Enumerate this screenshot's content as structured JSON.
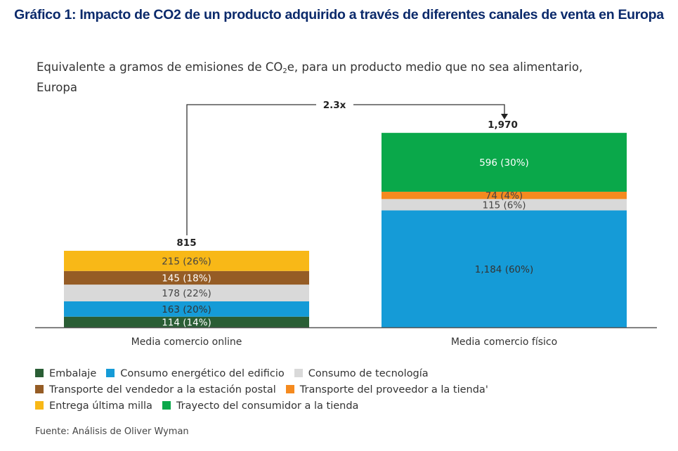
{
  "header": {
    "title": "Gráfico 1: Impacto de CO2 de un producto adquirido a través de diferentes canales de venta en Europa",
    "subtitle_part1": "Equivalente a gramos de emisiones de CO",
    "subtitle_sub": "2",
    "subtitle_part2": "e, para un producto medio que no sea alimentario, Europa"
  },
  "source": "Fuente: Análisis de Oliver Wyman",
  "chart_data": {
    "type": "bar",
    "stacked": true,
    "title": "Gráfico 1: Impacto de CO2 de un producto adquirido a través de diferentes canales de venta en Europa",
    "subtitle": "Equivalente a gramos de emisiones de CO2e, para un producto medio que no sea alimentario, Europa",
    "xlabel": "",
    "ylabel": "",
    "ylim": [
      0,
      1970
    ],
    "grid": false,
    "categories": [
      "Media comercio online",
      "Media comercio físico"
    ],
    "totals": [
      815,
      1970
    ],
    "total_labels": [
      "815",
      "1,970"
    ],
    "annotation": {
      "text": "2.3x",
      "from": "Media comercio online",
      "to": "Media comercio físico"
    },
    "series": [
      {
        "name": "Embalaje",
        "color": "#2a5e35",
        "label_color": "#ffffff",
        "values": [
          114,
          0
        ],
        "labels": [
          "114 (14%)",
          ""
        ]
      },
      {
        "name": "Consumo energético del edificio",
        "color": "#159bd7",
        "label_color": "#333333",
        "values": [
          163,
          1184
        ],
        "labels": [
          "163 (20%)",
          "1,184 (60%)"
        ]
      },
      {
        "name": "Consumo de tecnología",
        "color": "#d9d9d9",
        "label_color": "#444444",
        "values": [
          178,
          115
        ],
        "labels": [
          "178 (22%)",
          "115 (6%)"
        ]
      },
      {
        "name": "Transporte del vendedor a la estación postal",
        "color": "#955c25",
        "label_color": "#ffffff",
        "values": [
          145,
          0
        ],
        "labels": [
          "145 (18%)",
          ""
        ]
      },
      {
        "name": "Transporte del proveedor a la tienda'",
        "color": "#f58a1f",
        "label_color": "#444444",
        "values": [
          0,
          74
        ],
        "labels": [
          "",
          "74 (4%)"
        ]
      },
      {
        "name": "Entrega última milla",
        "color": "#f8b817",
        "label_color": "#444444",
        "values": [
          215,
          0
        ],
        "labels": [
          "215 (26%)",
          ""
        ]
      },
      {
        "name": "Trayecto del consumidor a la tienda",
        "color": "#0aa84a",
        "label_color": "#ffffff",
        "values": [
          0,
          596
        ],
        "labels": [
          "",
          "596 (30%)"
        ]
      }
    ],
    "legend": {
      "position": "bottom-left",
      "rows": [
        [
          "Embalaje",
          "Consumo energético del edificio",
          "Consumo de tecnología"
        ],
        [
          "Transporte del vendedor a la estación postal",
          "Transporte del proveedor a la tienda'"
        ],
        [
          "Entrega última milla",
          "Trayecto del consumidor a la tienda"
        ]
      ]
    }
  }
}
